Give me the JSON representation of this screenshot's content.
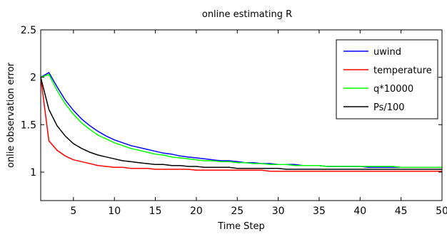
{
  "chart_data": {
    "type": "line",
    "title": "online estimating R",
    "xlabel": "Time Step",
    "ylabel": "onlie observation error",
    "xlim": [
      1,
      50
    ],
    "ylim": [
      0.7,
      2.5
    ],
    "xticks": [
      5,
      10,
      15,
      20,
      25,
      30,
      35,
      40,
      45,
      50
    ],
    "yticks": [
      1,
      1.5,
      2,
      2.5
    ],
    "ytick_labels": [
      "1",
      "1.5",
      "2",
      "2.5"
    ],
    "grid": false,
    "legend_position": "top-right",
    "x": [
      1,
      2,
      3,
      4,
      5,
      6,
      7,
      8,
      9,
      10,
      11,
      12,
      13,
      14,
      15,
      16,
      17,
      18,
      19,
      20,
      21,
      22,
      23,
      24,
      25,
      26,
      27,
      28,
      29,
      30,
      31,
      32,
      33,
      34,
      35,
      36,
      37,
      38,
      39,
      40,
      41,
      42,
      43,
      44,
      45,
      46,
      47,
      48,
      49,
      50
    ],
    "series": [
      {
        "name": "uwind",
        "color": "#0000ff",
        "values": [
          2.0,
          2.05,
          1.9,
          1.76,
          1.65,
          1.56,
          1.49,
          1.43,
          1.38,
          1.34,
          1.31,
          1.28,
          1.26,
          1.24,
          1.22,
          1.2,
          1.19,
          1.17,
          1.16,
          1.15,
          1.14,
          1.13,
          1.12,
          1.12,
          1.11,
          1.1,
          1.1,
          1.09,
          1.09,
          1.08,
          1.08,
          1.08,
          1.07,
          1.07,
          1.07,
          1.06,
          1.06,
          1.06,
          1.06,
          1.06,
          1.05,
          1.05,
          1.05,
          1.05,
          1.05,
          1.05,
          1.05,
          1.05,
          1.05,
          1.05
        ]
      },
      {
        "name": "temperature",
        "color": "#ff0000",
        "values": [
          2.0,
          1.33,
          1.23,
          1.17,
          1.13,
          1.11,
          1.09,
          1.07,
          1.06,
          1.05,
          1.05,
          1.04,
          1.04,
          1.04,
          1.03,
          1.03,
          1.03,
          1.03,
          1.03,
          1.02,
          1.02,
          1.02,
          1.02,
          1.02,
          1.02,
          1.02,
          1.02,
          1.02,
          1.01,
          1.01,
          1.01,
          1.01,
          1.01,
          1.01,
          1.01,
          1.01,
          1.01,
          1.01,
          1.01,
          1.01,
          1.01,
          1.01,
          1.01,
          1.01,
          1.01,
          1.01,
          1.01,
          1.01,
          1.01,
          1.01
        ]
      },
      {
        "name": "q*10000",
        "color": "#00ff00",
        "values": [
          2.0,
          2.03,
          1.86,
          1.72,
          1.61,
          1.52,
          1.45,
          1.39,
          1.35,
          1.31,
          1.28,
          1.25,
          1.23,
          1.21,
          1.19,
          1.18,
          1.16,
          1.15,
          1.14,
          1.13,
          1.12,
          1.12,
          1.11,
          1.11,
          1.1,
          1.1,
          1.09,
          1.09,
          1.08,
          1.08,
          1.08,
          1.07,
          1.07,
          1.07,
          1.07,
          1.06,
          1.06,
          1.06,
          1.06,
          1.06,
          1.06,
          1.06,
          1.06,
          1.06,
          1.05,
          1.05,
          1.05,
          1.05,
          1.05,
          1.05
        ]
      },
      {
        "name": "Ps/100",
        "color": "#000000",
        "values": [
          2.0,
          1.66,
          1.49,
          1.38,
          1.3,
          1.25,
          1.21,
          1.18,
          1.16,
          1.14,
          1.12,
          1.11,
          1.1,
          1.09,
          1.08,
          1.08,
          1.07,
          1.07,
          1.06,
          1.06,
          1.05,
          1.05,
          1.05,
          1.05,
          1.04,
          1.04,
          1.04,
          1.04,
          1.04,
          1.04,
          1.03,
          1.03,
          1.03,
          1.03,
          1.03,
          1.03,
          1.03,
          1.03,
          1.03,
          1.03,
          1.03,
          1.03,
          1.03,
          1.03,
          1.03,
          1.03,
          1.03,
          1.03,
          1.03,
          1.03
        ]
      }
    ]
  }
}
